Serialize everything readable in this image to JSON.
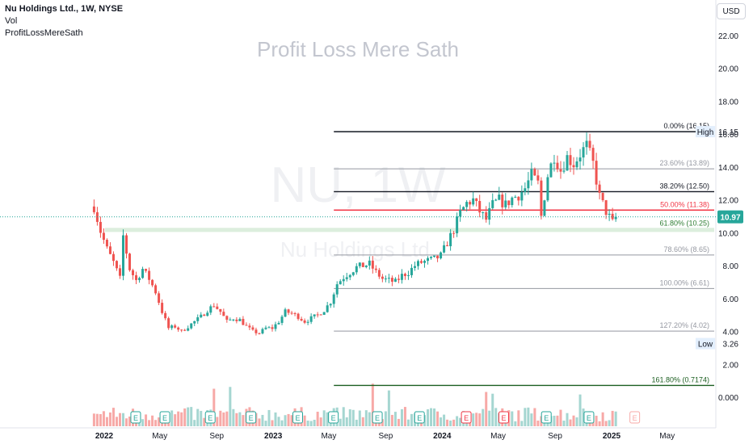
{
  "header": {
    "symbol": "Nu Holdings Ltd., 1W, NYSE",
    "vol": "Vol",
    "indicator": "ProfitLossMereSath"
  },
  "currency": "USD",
  "colors": {
    "up": "#26a69a",
    "down": "#ef5350",
    "vol_up": "#a5d6d1",
    "vol_down": "#f7a9a7",
    "fib_gray": "#9598a1",
    "fib_black": "#131722",
    "fib_red": "#f23645",
    "fib_green": "#2e7d32",
    "ma": "#5b9bd5"
  },
  "chart_data": {
    "type": "candlestick",
    "title": "Profit Loss Mere Sath",
    "watermark_symbol": "NU, 1W",
    "watermark_name": "Nu Holdings Ltd.",
    "y_range": [
      -1.5,
      23.5
    ],
    "y_ticks": [
      "22.00",
      "20.00",
      "18.00",
      "16.00",
      "14.00",
      "12.00",
      "10.00",
      "8.00",
      "6.00",
      "4.00",
      "2.00",
      "0.000"
    ],
    "x_ticks": [
      {
        "label": "2022",
        "date": "2022-01-01"
      },
      {
        "label": "May",
        "date": "2022-05-01"
      },
      {
        "label": "Sep",
        "date": "2022-09-01"
      },
      {
        "label": "2023",
        "date": "2023-01-01"
      },
      {
        "label": "May",
        "date": "2023-05-01"
      },
      {
        "label": "Sep",
        "date": "2023-09-01"
      },
      {
        "label": "2024",
        "date": "2024-01-01"
      },
      {
        "label": "May",
        "date": "2024-05-01"
      },
      {
        "label": "Sep",
        "date": "2024-09-01"
      },
      {
        "label": "2025",
        "date": "2025-01-01"
      },
      {
        "label": "May",
        "date": "2025-05-01"
      }
    ],
    "price_path": [
      [
        "2021-12-10",
        11.6
      ],
      [
        "2021-12-24",
        10.1
      ],
      [
        "2022-01-07",
        9.0
      ],
      [
        "2022-01-21",
        8.2
      ],
      [
        "2022-02-04",
        7.2
      ],
      [
        "2022-02-11",
        9.8
      ],
      [
        "2022-02-25",
        7.8
      ],
      [
        "2022-03-11",
        7.1
      ],
      [
        "2022-03-25",
        7.8
      ],
      [
        "2022-04-08",
        7.2
      ],
      [
        "2022-04-22",
        6.4
      ],
      [
        "2022-05-06",
        5.2
      ],
      [
        "2022-05-20",
        4.2
      ],
      [
        "2022-06-03",
        4.3
      ],
      [
        "2022-06-17",
        4.0
      ],
      [
        "2022-07-01",
        4.3
      ],
      [
        "2022-07-15",
        4.6
      ],
      [
        "2022-07-29",
        4.9
      ],
      [
        "2022-08-12",
        5.3
      ],
      [
        "2022-08-26",
        5.6
      ],
      [
        "2022-09-09",
        5.2
      ],
      [
        "2022-09-23",
        4.6
      ],
      [
        "2022-10-07",
        4.8
      ],
      [
        "2022-10-21",
        4.7
      ],
      [
        "2022-11-04",
        4.3
      ],
      [
        "2022-11-18",
        4.0
      ],
      [
        "2022-12-02",
        3.9
      ],
      [
        "2022-12-16",
        4.2
      ],
      [
        "2022-12-30",
        4.2
      ],
      [
        "2023-01-13",
        4.6
      ],
      [
        "2023-01-27",
        5.2
      ],
      [
        "2023-02-10",
        5.1
      ],
      [
        "2023-02-24",
        4.9
      ],
      [
        "2023-03-10",
        4.6
      ],
      [
        "2023-03-24",
        4.8
      ],
      [
        "2023-04-07",
        5.0
      ],
      [
        "2023-04-21",
        5.3
      ],
      [
        "2023-05-05",
        5.8
      ],
      [
        "2023-05-19",
        6.9
      ],
      [
        "2023-06-02",
        7.3
      ],
      [
        "2023-06-16",
        7.6
      ],
      [
        "2023-06-30",
        7.9
      ],
      [
        "2023-07-14",
        8.0
      ],
      [
        "2023-07-28",
        8.1
      ],
      [
        "2023-08-11",
        7.6
      ],
      [
        "2023-08-25",
        7.2
      ],
      [
        "2023-09-08",
        7.1
      ],
      [
        "2023-09-22",
        7.0
      ],
      [
        "2023-10-06",
        7.4
      ],
      [
        "2023-10-20",
        7.6
      ],
      [
        "2023-11-03",
        8.0
      ],
      [
        "2023-11-17",
        8.2
      ],
      [
        "2023-12-01",
        8.3
      ],
      [
        "2023-12-15",
        8.4
      ],
      [
        "2023-12-29",
        8.6
      ],
      [
        "2024-01-12",
        9.4
      ],
      [
        "2024-01-26",
        10.2
      ],
      [
        "2024-02-09",
        11.2
      ],
      [
        "2024-02-23",
        11.8
      ],
      [
        "2024-03-08",
        12.0
      ],
      [
        "2024-03-22",
        11.3
      ],
      [
        "2024-04-05",
        10.8
      ],
      [
        "2024-04-19",
        11.7
      ],
      [
        "2024-05-03",
        12.0
      ],
      [
        "2024-05-17",
        11.7
      ],
      [
        "2024-05-31",
        12.1
      ],
      [
        "2024-06-14",
        12.3
      ],
      [
        "2024-06-28",
        12.7
      ],
      [
        "2024-07-12",
        13.5
      ],
      [
        "2024-07-26",
        13.0
      ],
      [
        "2024-08-02",
        11.0
      ],
      [
        "2024-08-16",
        13.5
      ],
      [
        "2024-08-30",
        14.7
      ],
      [
        "2024-09-13",
        13.8
      ],
      [
        "2024-09-27",
        14.6
      ],
      [
        "2024-10-11",
        14.2
      ],
      [
        "2024-10-25",
        14.8
      ],
      [
        "2024-11-08",
        15.3
      ],
      [
        "2024-11-22",
        14.2
      ],
      [
        "2024-12-06",
        12.2
      ],
      [
        "2024-12-20",
        11.3
      ],
      [
        "2025-01-03",
        10.6
      ],
      [
        "2025-01-10",
        10.97
      ]
    ],
    "last_price": "10.97",
    "high_label": "High",
    "high_value": "16.15",
    "low_label": "Low",
    "low_value": "3.26",
    "fib_levels": [
      {
        "label": "0.00% (16.15)",
        "price": 16.15,
        "color": "black"
      },
      {
        "label": "23.60% (13.89)",
        "price": 13.89,
        "color": "gray"
      },
      {
        "label": "38.20% (12.50)",
        "price": 12.5,
        "color": "black"
      },
      {
        "label": "50.00% (11.38)",
        "price": 11.38,
        "color": "red"
      },
      {
        "label": "61.80% (10.25)",
        "price": 10.25,
        "color": "green"
      },
      {
        "label": "78.60% (8.65)",
        "price": 8.65,
        "color": "gray"
      },
      {
        "label": "100.00% (6.61)",
        "price": 6.61,
        "color": "gray"
      },
      {
        "label": "127.20% (4.02)",
        "price": 4.02,
        "color": "gray"
      },
      {
        "label": "161.80% (0.7174)",
        "price": 0.7174,
        "color": "darkgreen"
      }
    ],
    "fib_start_date": "2023-05-12",
    "support_band": [
      10.05,
      10.3
    ],
    "earnings_markers": [
      {
        "date": "2022-03-10",
        "label": "E",
        "type": "past"
      },
      {
        "date": "2022-05-12",
        "label": "E",
        "type": "past"
      },
      {
        "date": "2022-08-18",
        "label": "E",
        "type": "past"
      },
      {
        "date": "2022-11-14",
        "label": "E",
        "type": "past"
      },
      {
        "date": "2023-02-23",
        "label": "E",
        "type": "past"
      },
      {
        "date": "2023-05-11",
        "label": "E",
        "type": "past"
      },
      {
        "date": "2023-08-14",
        "label": "E",
        "type": "past"
      },
      {
        "date": "2023-11-13",
        "label": "E",
        "type": "past"
      },
      {
        "date": "2024-02-22",
        "label": "E",
        "type": "neg"
      },
      {
        "date": "2024-05-13",
        "label": "E",
        "type": "neg"
      },
      {
        "date": "2024-08-13",
        "label": "E",
        "type": "past"
      },
      {
        "date": "2024-11-13",
        "label": "E",
        "type": "past"
      },
      {
        "date": "2025-02-20",
        "label": "E",
        "type": "future"
      }
    ]
  }
}
